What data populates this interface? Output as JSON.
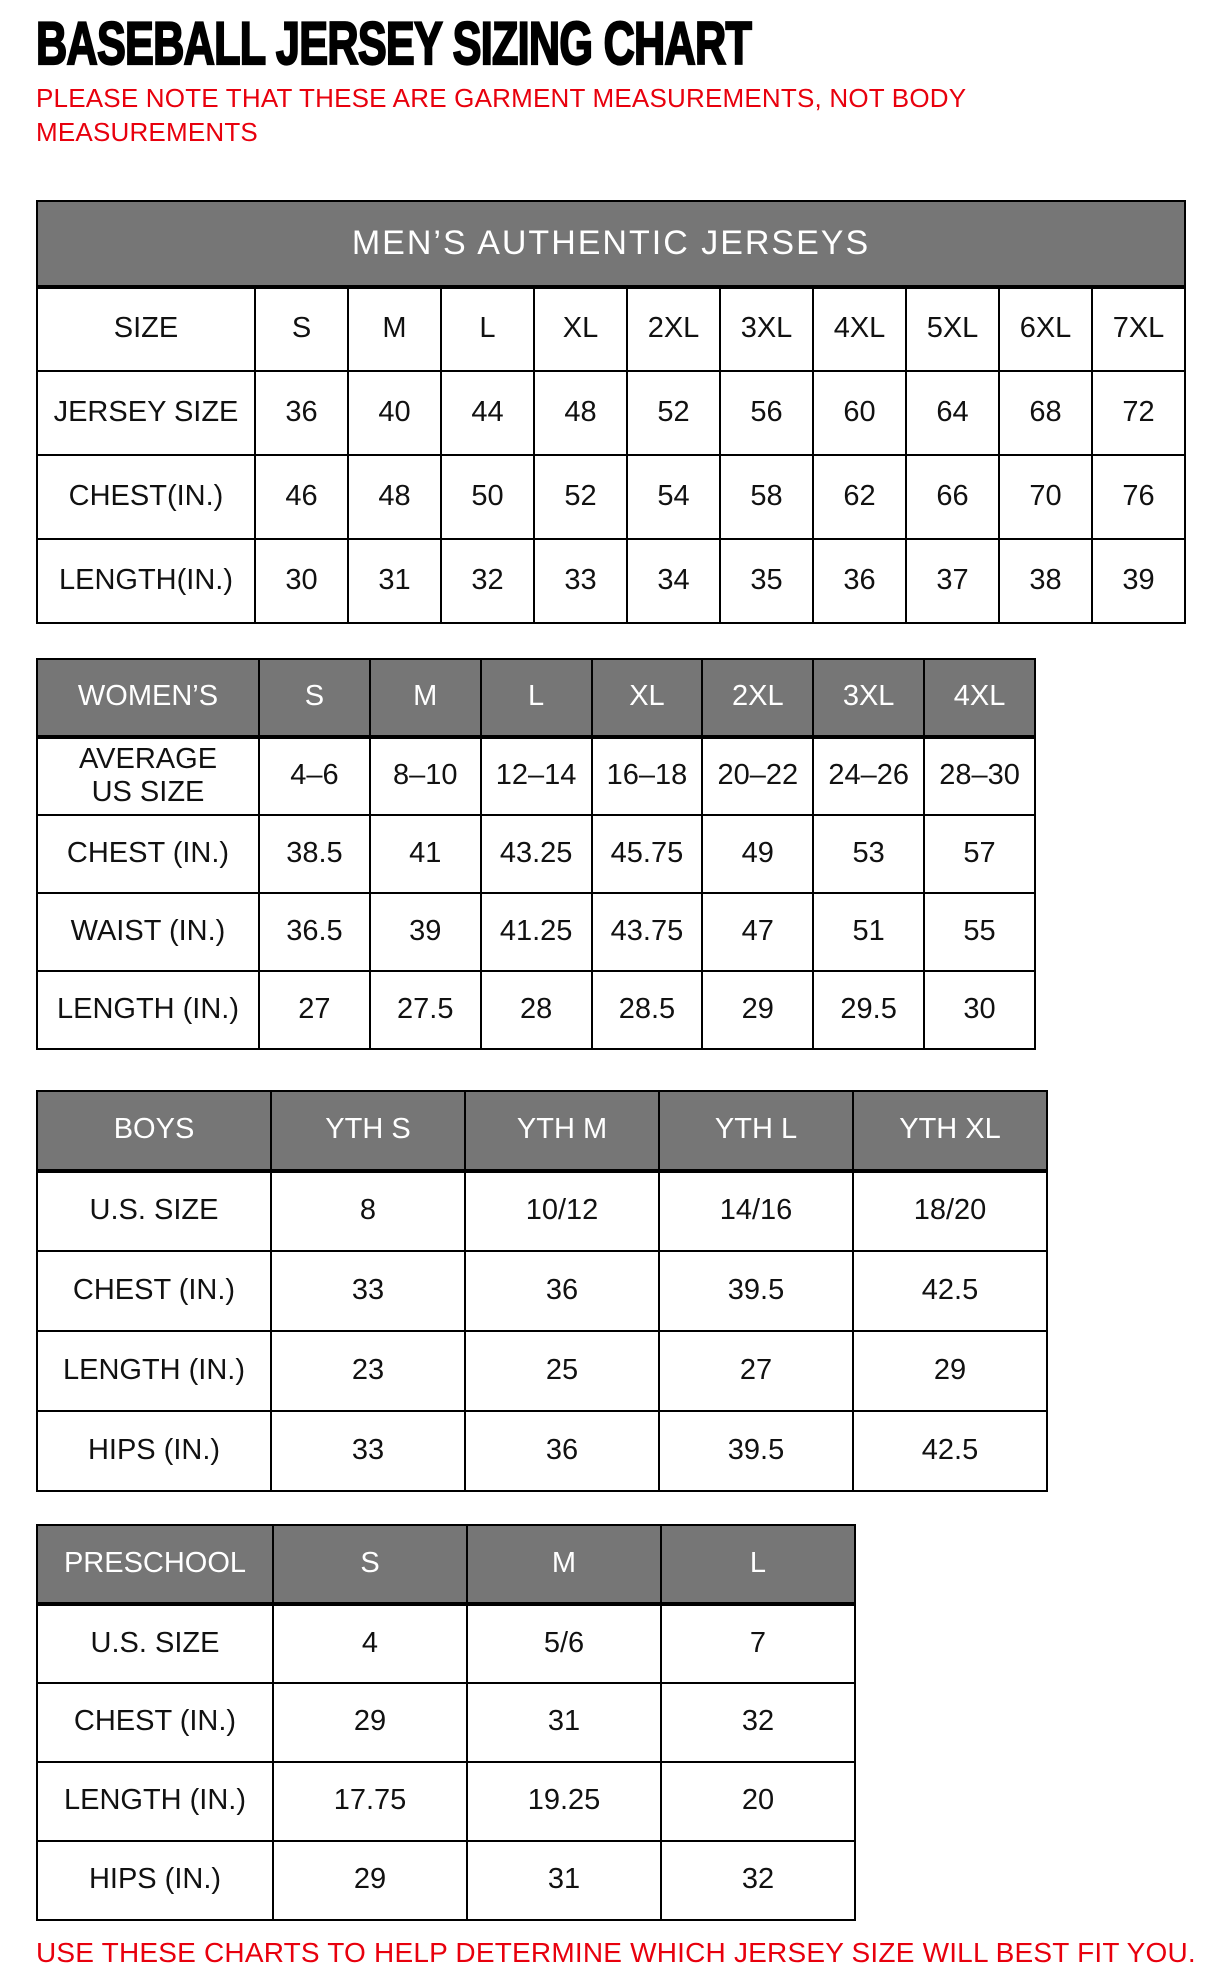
{
  "page": {
    "title": "BASEBALL JERSEY SIZING CHART",
    "subtitle": "PLEASE NOTE THAT THESE ARE GARMENT MEASUREMENTS, NOT BODY\nMEASUREMENTS",
    "footer": "USE THESE CHARTS TO HELP DETERMINE WHICH JERSEY SIZE WILL BEST FIT YOU.",
    "colors": {
      "header_gray": "#767676",
      "accent_red": "#e8000d",
      "border_black": "#000000",
      "text_black": "#111111"
    }
  },
  "tables": [
    {
      "name": "mens",
      "title": "MEN’S AUTHENTIC JERSEYS",
      "header": null,
      "rows": [
        {
          "label": "SIZE",
          "values": [
            "S",
            "M",
            "L",
            "XL",
            "2XL",
            "3XL",
            "4XL",
            "5XL",
            "6XL",
            "7XL"
          ]
        },
        {
          "label": "JERSEY SIZE",
          "values": [
            "36",
            "40",
            "44",
            "48",
            "52",
            "56",
            "60",
            "64",
            "68",
            "72"
          ]
        },
        {
          "label": "CHEST(IN.)",
          "values": [
            "46",
            "48",
            "50",
            "52",
            "54",
            "58",
            "62",
            "66",
            "70",
            "76"
          ]
        },
        {
          "label": "LENGTH(IN.)",
          "values": [
            "30",
            "31",
            "32",
            "33",
            "34",
            "35",
            "36",
            "37",
            "38",
            "39"
          ]
        }
      ]
    },
    {
      "name": "womens",
      "title": null,
      "header": [
        "WOMEN’S",
        "S",
        "M",
        "L",
        "XL",
        "2XL",
        "3XL",
        "4XL"
      ],
      "rows": [
        {
          "label": "AVERAGE\nUS SIZE",
          "values": [
            "4–6",
            "8–10",
            "12–14",
            "16–18",
            "20–22",
            "24–26",
            "28–30"
          ]
        },
        {
          "label": "CHEST (IN.)",
          "values": [
            "38.5",
            "41",
            "43.25",
            "45.75",
            "49",
            "53",
            "57"
          ]
        },
        {
          "label": "WAIST (IN.)",
          "values": [
            "36.5",
            "39",
            "41.25",
            "43.75",
            "47",
            "51",
            "55"
          ]
        },
        {
          "label": "LENGTH (IN.)",
          "values": [
            "27",
            "27.5",
            "28",
            "28.5",
            "29",
            "29.5",
            "30"
          ]
        }
      ]
    },
    {
      "name": "boys",
      "title": null,
      "header": [
        "BOYS",
        "YTH S",
        "YTH M",
        "YTH L",
        "YTH XL"
      ],
      "rows": [
        {
          "label": "U.S. SIZE",
          "values": [
            "8",
            "10/12",
            "14/16",
            "18/20"
          ]
        },
        {
          "label": "CHEST (IN.)",
          "values": [
            "33",
            "36",
            "39.5",
            "42.5"
          ]
        },
        {
          "label": "LENGTH (IN.)",
          "values": [
            "23",
            "25",
            "27",
            "29"
          ]
        },
        {
          "label": "HIPS (IN.)",
          "values": [
            "33",
            "36",
            "39.5",
            "42.5"
          ]
        }
      ]
    },
    {
      "name": "preschool",
      "title": null,
      "header": [
        "PRESCHOOL",
        "S",
        "M",
        "L"
      ],
      "rows": [
        {
          "label": "U.S. SIZE",
          "values": [
            "4",
            "5/6",
            "7"
          ]
        },
        {
          "label": "CHEST (IN.)",
          "values": [
            "29",
            "31",
            "32"
          ]
        },
        {
          "label": "LENGTH (IN.)",
          "values": [
            "17.75",
            "19.25",
            "20"
          ]
        },
        {
          "label": "HIPS (IN.)",
          "values": [
            "29",
            "31",
            "32"
          ]
        }
      ]
    }
  ]
}
